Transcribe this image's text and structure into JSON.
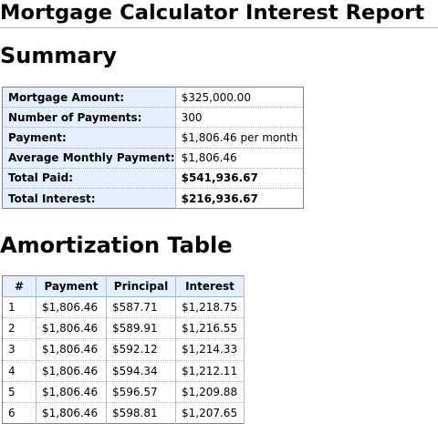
{
  "report": {
    "title": "Mortgage Calculator Interest Report"
  },
  "summary": {
    "heading": "Summary",
    "rows": [
      {
        "label": "Mortgage Amount:",
        "value": "$325,000.00"
      },
      {
        "label": "Number of Payments:",
        "value": "300"
      },
      {
        "label": "Payment:",
        "value": "$1,806.46 per month"
      },
      {
        "label": "Average Monthly Payment:",
        "value": "$1,806.46"
      },
      {
        "label": "Total Paid:",
        "value": "$541,936.67"
      },
      {
        "label": "Total Interest:",
        "value": "$216,936.67"
      }
    ]
  },
  "amortization": {
    "heading": "Amortization Table",
    "columns": [
      "#",
      "Payment",
      "Principal",
      "Interest"
    ],
    "rows": [
      [
        "1",
        "$1,806.46",
        "$587.71",
        "$1,218.75"
      ],
      [
        "2",
        "$1,806.46",
        "$589.91",
        "$1,216.55"
      ],
      [
        "3",
        "$1,806.46",
        "$592.12",
        "$1,214.33"
      ],
      [
        "4",
        "$1,806.46",
        "$594.34",
        "$1,212.11"
      ],
      [
        "5",
        "$1,806.46",
        "$596.57",
        "$1,209.88"
      ],
      [
        "6",
        "$1,806.46",
        "$598.81",
        "$1,207.65"
      ]
    ]
  }
}
